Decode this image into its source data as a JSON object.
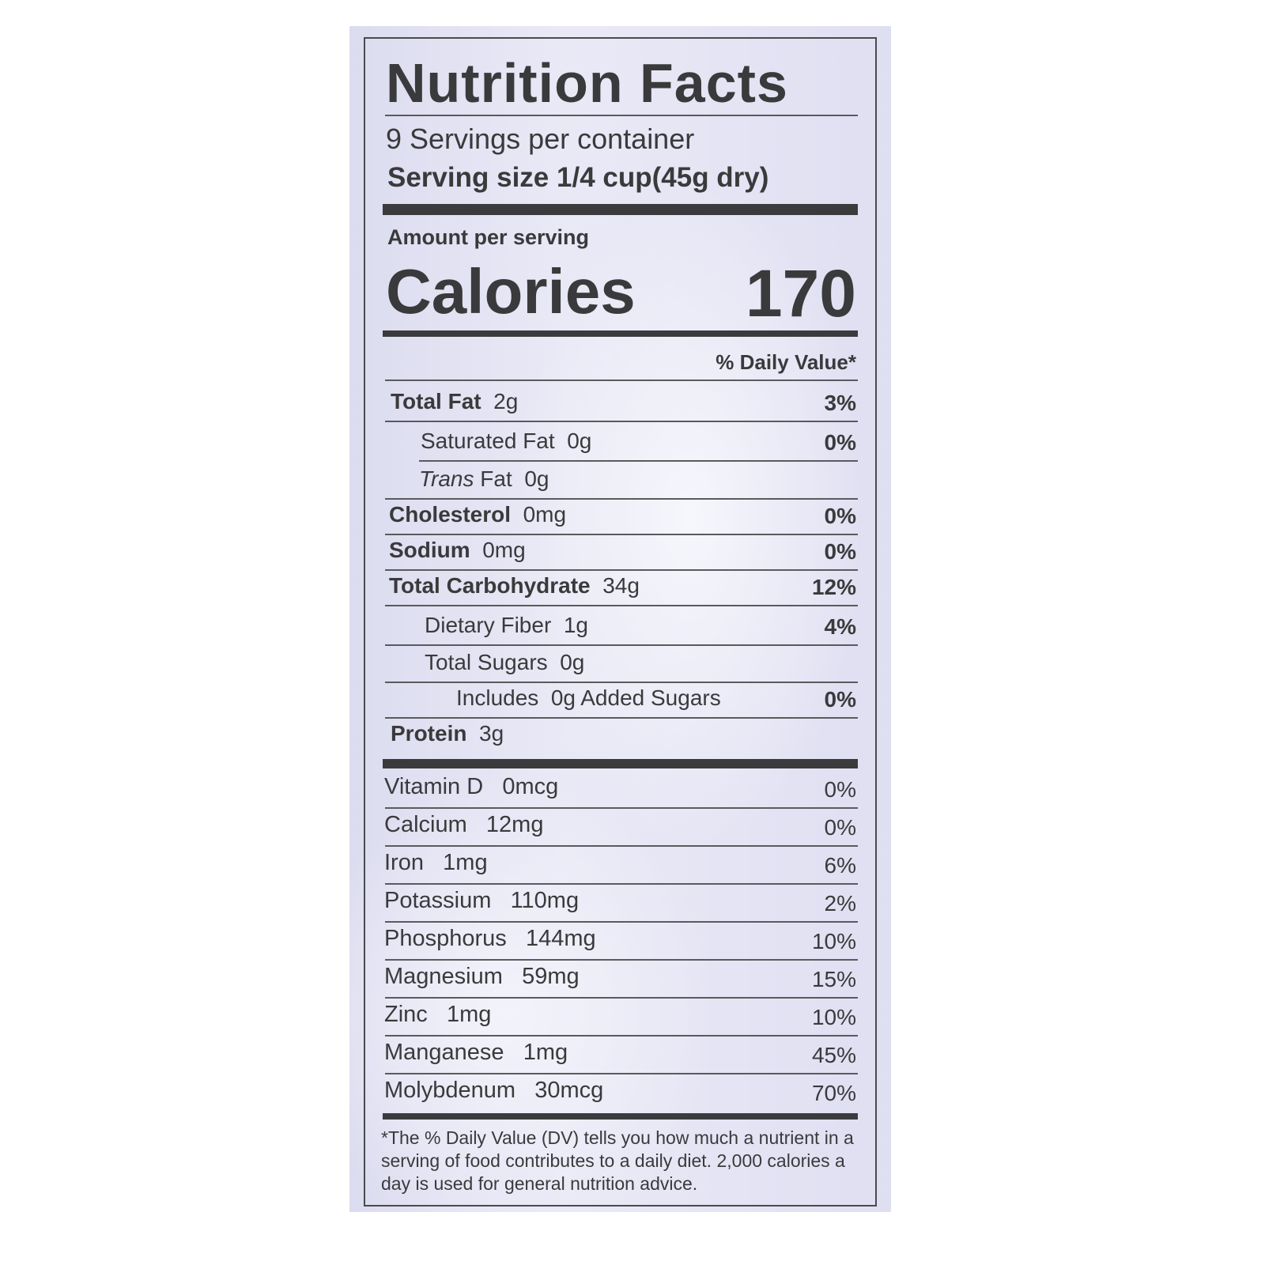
{
  "label": {
    "title": "Nutrition Facts",
    "servings_per_container": "9 Servings per container",
    "serving_size_label": "Serving size",
    "serving_size_value": "1/4 cup(45g dry)",
    "amount_per_serving": "Amount per serving",
    "calories_label": "Calories",
    "calories_value": "170",
    "daily_value_header": "% Daily Value*",
    "nutrients": [
      {
        "name": "Total Fat",
        "amount": "2g",
        "dv": "3%"
      },
      {
        "name": "Saturated Fat",
        "amount": "0g",
        "dv": "0%"
      },
      {
        "name": "Trans",
        "name_suffix": "Fat",
        "amount": "0g",
        "dv": ""
      },
      {
        "name": "Cholesterol",
        "amount": "0mg",
        "dv": "0%"
      },
      {
        "name": "Sodium",
        "amount": "0mg",
        "dv": "0%"
      },
      {
        "name": "Total Carbohydrate",
        "amount": "34g",
        "dv": "12%"
      },
      {
        "name": "Dietary Fiber",
        "amount": "1g",
        "dv": "4%"
      },
      {
        "name": "Total Sugars",
        "amount": "0g",
        "dv": ""
      },
      {
        "name": "Includes",
        "amount": "0g",
        "name_suffix": "Added Sugars",
        "dv": "0%"
      },
      {
        "name": "Protein",
        "amount": "3g",
        "dv": ""
      }
    ],
    "vitamins": [
      {
        "name": "Vitamin D",
        "amount": "0mcg",
        "dv": "0%"
      },
      {
        "name": "Calcium",
        "amount": "12mg",
        "dv": "0%"
      },
      {
        "name": "Iron",
        "amount": "1mg",
        "dv": "6%"
      },
      {
        "name": "Potassium",
        "amount": "110mg",
        "dv": "2%"
      },
      {
        "name": "Phosphorus",
        "amount": "144mg",
        "dv": "10%"
      },
      {
        "name": "Magnesium",
        "amount": "59mg",
        "dv": "15%"
      },
      {
        "name": "Zinc",
        "amount": "1mg",
        "dv": "10%"
      },
      {
        "name": "Manganese",
        "amount": "1mg",
        "dv": "45%"
      },
      {
        "name": "Molybdenum",
        "amount": "30mcg",
        "dv": "70%"
      }
    ],
    "footnote": "*The % Daily Value (DV) tells you how much a nutrient in a serving of food contributes to a daily diet. 2,000 calories a day is used for general nutrition advice."
  }
}
